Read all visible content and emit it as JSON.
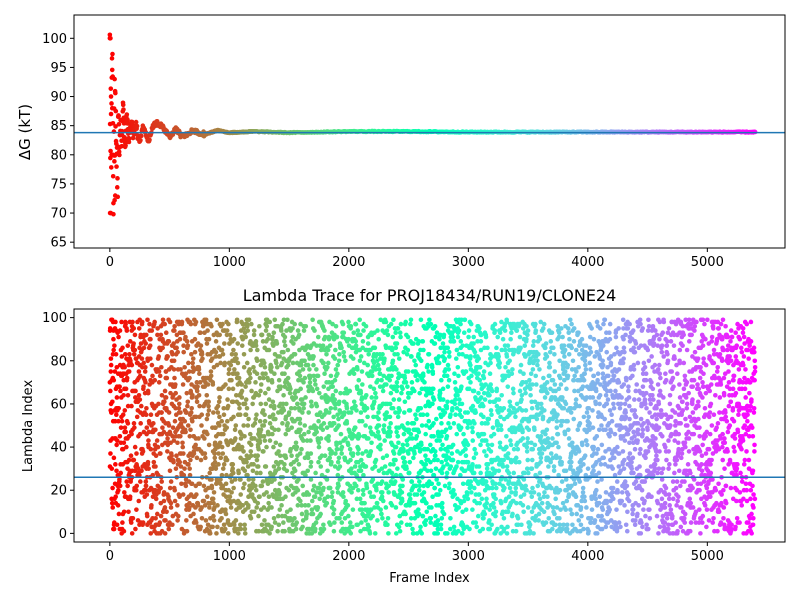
{
  "chart_data": [
    {
      "type": "scatter",
      "title": "",
      "xlabel": "",
      "ylabel": "ΔG (kT)",
      "xlim": [
        -300,
        5650
      ],
      "ylim": [
        64,
        104
      ],
      "xticks": [
        0,
        1000,
        2000,
        3000,
        4000,
        5000
      ],
      "yticks": [
        65,
        70,
        75,
        80,
        85,
        90,
        95,
        100
      ],
      "hline": 83.8,
      "colormap": "rainbow (red at frame 0 to violet at last frame)",
      "n_frames": 5400,
      "trace_points": [
        {
          "x": 0,
          "y": 100
        },
        {
          "x": 5,
          "y": 70
        },
        {
          "x": 8,
          "y": 90
        },
        {
          "x": 12,
          "y": 80
        },
        {
          "x": 18,
          "y": 96
        },
        {
          "x": 25,
          "y": 93
        },
        {
          "x": 30,
          "y": 70
        },
        {
          "x": 35,
          "y": 88
        },
        {
          "x": 40,
          "y": 74
        },
        {
          "x": 45,
          "y": 93
        },
        {
          "x": 50,
          "y": 86
        },
        {
          "x": 55,
          "y": 78
        },
        {
          "x": 60,
          "y": 82
        },
        {
          "x": 65,
          "y": 73
        },
        {
          "x": 70,
          "y": 88
        },
        {
          "x": 80,
          "y": 81
        },
        {
          "x": 90,
          "y": 86
        },
        {
          "x": 100,
          "y": 82
        },
        {
          "x": 110,
          "y": 89
        },
        {
          "x": 120,
          "y": 84
        },
        {
          "x": 130,
          "y": 81
        },
        {
          "x": 140,
          "y": 87
        },
        {
          "x": 160,
          "y": 82
        },
        {
          "x": 180,
          "y": 86
        },
        {
          "x": 200,
          "y": 83
        },
        {
          "x": 220,
          "y": 85
        },
        {
          "x": 250,
          "y": 82
        },
        {
          "x": 280,
          "y": 85
        },
        {
          "x": 320,
          "y": 82
        },
        {
          "x": 360,
          "y": 85
        },
        {
          "x": 400,
          "y": 85.5
        },
        {
          "x": 450,
          "y": 84.5
        },
        {
          "x": 500,
          "y": 83
        },
        {
          "x": 550,
          "y": 84.5
        },
        {
          "x": 600,
          "y": 83.2
        },
        {
          "x": 700,
          "y": 84.1
        },
        {
          "x": 800,
          "y": 83.5
        },
        {
          "x": 900,
          "y": 84.2
        },
        {
          "x": 1000,
          "y": 83.8
        },
        {
          "x": 1200,
          "y": 84
        },
        {
          "x": 1500,
          "y": 83.8
        },
        {
          "x": 2000,
          "y": 84
        },
        {
          "x": 2500,
          "y": 84
        },
        {
          "x": 3000,
          "y": 83.9
        },
        {
          "x": 4000,
          "y": 83.9
        },
        {
          "x": 5000,
          "y": 83.9
        },
        {
          "x": 5400,
          "y": 83.9
        }
      ]
    },
    {
      "type": "scatter",
      "title": "Lambda Trace for PROJ18434/RUN19/CLONE24",
      "xlabel": "Frame Index",
      "ylabel": "Lambda Index",
      "xlim": [
        -300,
        5650
      ],
      "ylim": [
        -4,
        104
      ],
      "xticks": [
        0,
        1000,
        2000,
        3000,
        4000,
        5000
      ],
      "yticks": [
        0,
        20,
        40,
        60,
        80,
        100
      ],
      "hline": 26,
      "colormap": "rainbow (red at frame 0 to violet at last frame)",
      "n_frames": 5400,
      "lambda_range": [
        0,
        99
      ],
      "distribution": "roughly uniform lambda index 0-99 across all frames"
    }
  ],
  "colors": {
    "hline": "#1f77b4",
    "axes": "#000000",
    "background": "#ffffff"
  }
}
